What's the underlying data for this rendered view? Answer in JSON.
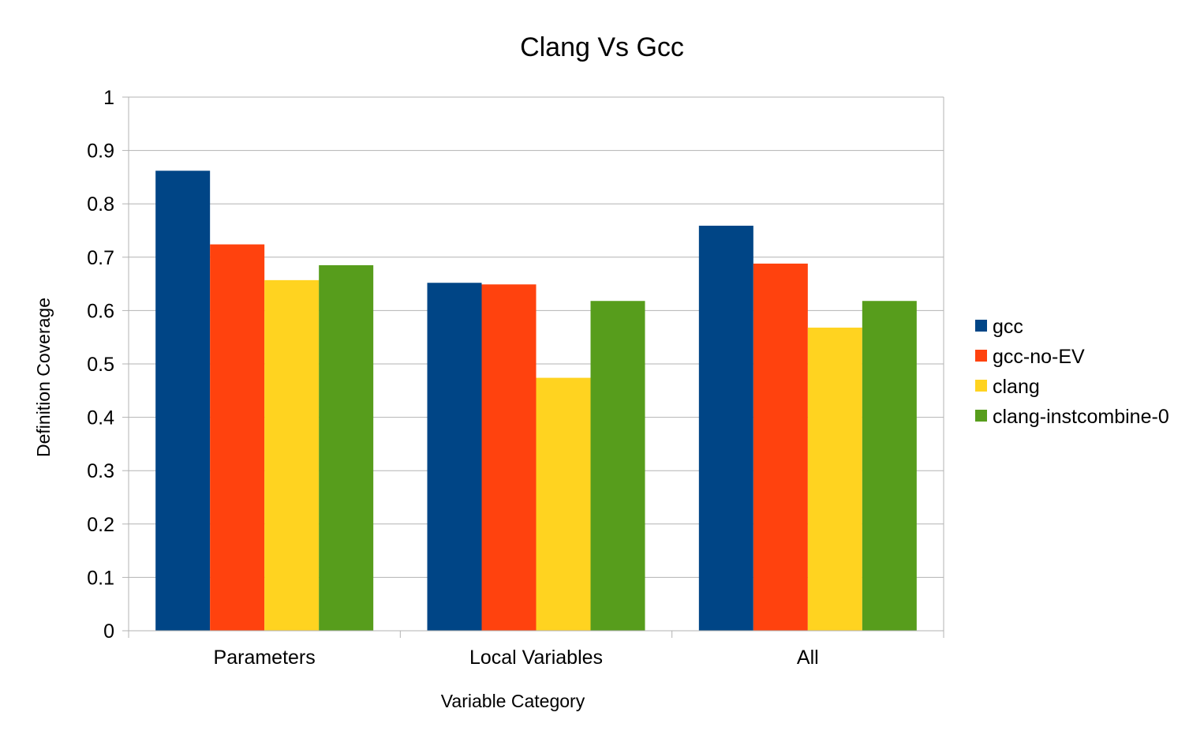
{
  "chart_data": {
    "type": "bar",
    "title": "Clang Vs Gcc",
    "xlabel": "Variable Category",
    "ylabel": "Definition Coverage",
    "categories": [
      "Parameters",
      "Local Variables",
      "All"
    ],
    "series": [
      {
        "name": "gcc",
        "color": "#004586",
        "values": [
          0.862,
          0.652,
          0.759
        ]
      },
      {
        "name": "gcc-no-EV",
        "color": "#ff420e",
        "values": [
          0.724,
          0.649,
          0.688
        ]
      },
      {
        "name": "clang",
        "color": "#ffd320",
        "values": [
          0.657,
          0.474,
          0.568
        ]
      },
      {
        "name": "clang-instcombine-0",
        "color": "#579d1c",
        "values": [
          0.685,
          0.618,
          0.618
        ]
      }
    ],
    "ylim": [
      0,
      1
    ],
    "yticks": [
      "0",
      "0.1",
      "0.2",
      "0.3",
      "0.4",
      "0.5",
      "0.6",
      "0.7",
      "0.8",
      "0.9",
      "1"
    ],
    "grid": true,
    "legend": "right"
  }
}
